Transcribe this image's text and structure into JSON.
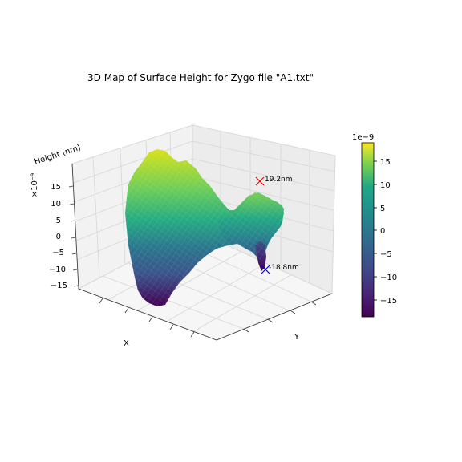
{
  "chart_data": {
    "type": "surface3d",
    "title": "3D Map of Surface Height for Zygo file \"A1.txt\"",
    "xlabel": "X",
    "ylabel": "Y",
    "zlabel": "Height (nm)",
    "z_offset_label": "×10⁻⁹",
    "z_ticks": [
      "15",
      "10",
      "5",
      "0",
      "−5",
      "−10",
      "−15"
    ],
    "z_range": [
      -18.8,
      19.2
    ],
    "colormap": "viridis",
    "colorbar": {
      "exponent_label": "1e−9",
      "ticks": [
        "15",
        "10",
        "5",
        "0",
        "−5",
        "−10",
        "−15"
      ],
      "range": [
        -18.8,
        19.2
      ]
    },
    "annotations": [
      {
        "label": "19.2nm",
        "value": 19.2,
        "marker": "x",
        "color": "#ff0000"
      },
      {
        "label": "-18.8nm",
        "value": -18.8,
        "marker": "x",
        "color": "#0000ff"
      }
    ]
  }
}
